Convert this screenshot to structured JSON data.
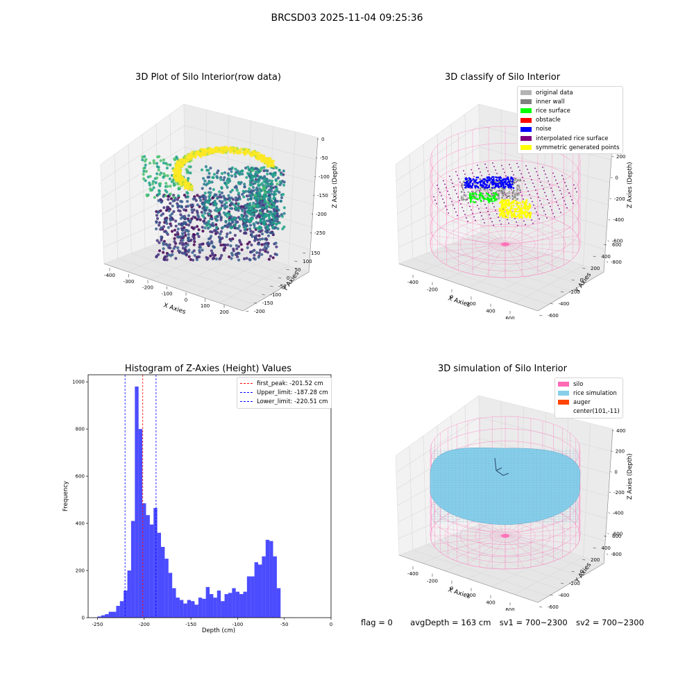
{
  "suptitle": "BRCSD03 2025-11-04 09:25:36",
  "panel1": {
    "title": "3D Plot of Silo Interior(row data)",
    "xlabel": "X Axies",
    "ylabel": "Y Axies",
    "zlabel": "Z Axies (Depth)",
    "xticks": [
      "-400",
      "-300",
      "-200",
      "-100",
      "0",
      "100",
      "200"
    ],
    "yticks": [
      "150",
      "100",
      "50",
      "0",
      "-50",
      "-100",
      "-150",
      "-200"
    ],
    "zticks": [
      "0",
      "-50",
      "-100",
      "-150",
      "-200",
      "-250"
    ]
  },
  "panel2": {
    "title": "3D classify of Silo Interior",
    "xlabel": "X Axies",
    "ylabel": "Y Axies",
    "zlabel": "Z Axies (Depth)",
    "xticks": [
      "-400",
      "-200",
      "0",
      "200",
      "400",
      "600"
    ],
    "yticks": [
      "600",
      "400",
      "200",
      "0",
      "-200",
      "-400",
      "-600"
    ],
    "zticks": [
      "200",
      "0",
      "-200",
      "-400",
      "-600",
      "-800"
    ],
    "legend": [
      {
        "label": "original data",
        "color": "#b3b3b3"
      },
      {
        "label": "inner wall",
        "color": "#808080"
      },
      {
        "label": "rice surface",
        "color": "#00ff00"
      },
      {
        "label": "obstacle",
        "color": "#ff0000"
      },
      {
        "label": "noise",
        "color": "#0000ff"
      },
      {
        "label": "interpolated rice surface",
        "color": "#800080"
      },
      {
        "label": "symmetric generated points",
        "color": "#ffff00"
      }
    ]
  },
  "panel4": {
    "title": "3D simulation of Silo Interior",
    "xlabel": "X Axies",
    "ylabel": "Y Axies",
    "zlabel": "Z Axies (Depth)",
    "xticks": [
      "-400",
      "-200",
      "0",
      "200",
      "400",
      "600"
    ],
    "yticks": [
      "600",
      "400",
      "200",
      "0",
      "-200",
      "-400",
      "-600"
    ],
    "zticks": [
      "400",
      "200",
      "0",
      "-200",
      "-400",
      "-600",
      "-800"
    ],
    "legend": [
      {
        "label": "silo",
        "color": "#ff69b4"
      },
      {
        "label": "rice simulation",
        "color": "#87ceeb"
      },
      {
        "label": "auger",
        "color": "#ff4500"
      },
      {
        "label": "center(101,-11)",
        "color": ""
      }
    ]
  },
  "status": {
    "flag": "flag = 0",
    "avg": "avgDepth = 163 cm",
    "sv1": "sv1 = 700~2300",
    "sv2": "sv2 = 700~2300"
  },
  "chart_data": [
    {
      "type": "scatter",
      "title": "3D Plot of Silo Interior(row data)",
      "xlabel": "X Axies",
      "ylabel": "Y Axies",
      "zlabel": "Z Axies (Depth)",
      "xlim": [
        -420,
        260
      ],
      "ylim": [
        -210,
        180
      ],
      "zlim": [
        -270,
        0
      ],
      "colormap": "viridis"
    },
    {
      "type": "scatter",
      "title": "3D classify of Silo Interior",
      "xlabel": "X Axies",
      "ylabel": "Y Axies",
      "zlabel": "Z Axies (Depth)",
      "xlim": [
        -500,
        700
      ],
      "ylim": [
        -650,
        650
      ],
      "zlim": [
        -900,
        300
      ]
    },
    {
      "type": "bar",
      "title": "Histogram of Z-Axies (Height) Values",
      "xlabel": "Depth (cm)",
      "ylabel": "Frequency",
      "xlim": [
        -260,
        0
      ],
      "ylim": [
        0,
        1030
      ],
      "xticks": [
        -250,
        -200,
        -150,
        -100,
        -50,
        0
      ],
      "yticks": [
        0,
        200,
        400,
        600,
        800,
        1000
      ],
      "bin_start": -250,
      "bin_width": 4,
      "values": [
        5,
        10,
        15,
        25,
        25,
        50,
        70,
        115,
        200,
        410,
        980,
        800,
        485,
        435,
        395,
        465,
        360,
        300,
        250,
        190,
        125,
        85,
        75,
        60,
        75,
        70,
        55,
        85,
        80,
        130,
        100,
        85,
        115,
        70,
        100,
        105,
        125,
        110,
        100,
        110,
        175,
        175,
        235,
        225,
        260,
        330,
        325,
        260,
        125
      ],
      "color": "#0000ff",
      "vlines": [
        {
          "label": "first_peak: -201.52 cm",
          "x": -201.52,
          "color": "#ff0000"
        },
        {
          "label": "Upper_limit: -187.28 cm",
          "x": -187.28,
          "color": "#0000ff"
        },
        {
          "label": "Lower_limit: -220.51 cm",
          "x": -220.51,
          "color": "#0000ff"
        }
      ]
    },
    {
      "type": "scatter",
      "title": "3D simulation of Silo Interior",
      "xlabel": "X Axies",
      "ylabel": "Y Axies",
      "zlabel": "Z Axies (Depth)",
      "xlim": [
        -500,
        700
      ],
      "ylim": [
        -650,
        650
      ],
      "zlim": [
        -900,
        450
      ]
    }
  ]
}
